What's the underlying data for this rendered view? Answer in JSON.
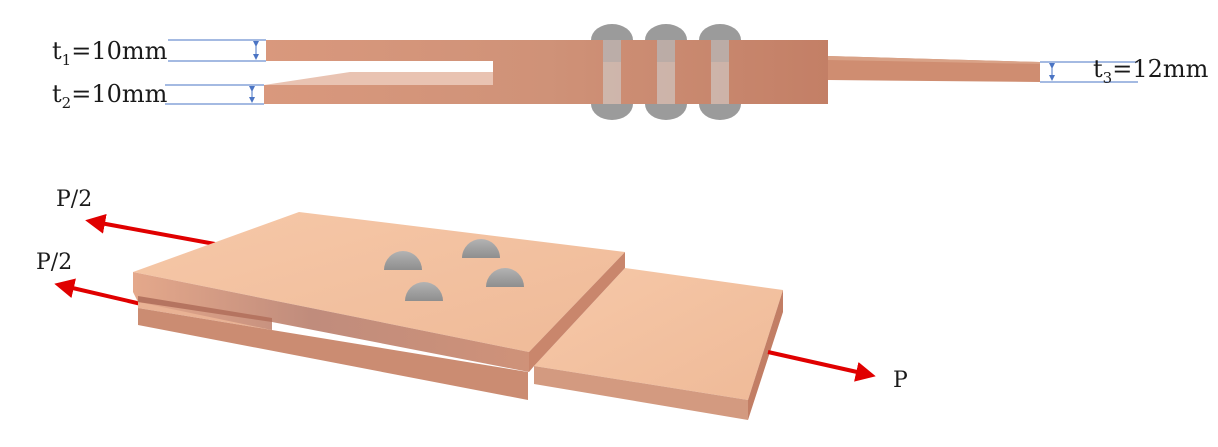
{
  "dimensions": {
    "t1": {
      "prefix": "t",
      "sub": "1",
      "value": "=10mm"
    },
    "t2": {
      "prefix": "t",
      "sub": "2",
      "value": "=10mm"
    },
    "t3": {
      "prefix": "t",
      "sub": "3",
      "value": "=12mm"
    }
  },
  "forces": {
    "upper": "P/2",
    "lower": "P/2",
    "right": "P"
  },
  "colors": {
    "plate_light": "#f3c3a2",
    "plate_mid": "#dfa085",
    "plate_dark": "#c07e68",
    "rivet": "#9c9c9c",
    "arrow": "#e00000",
    "dim_line": "#4a74c4"
  }
}
